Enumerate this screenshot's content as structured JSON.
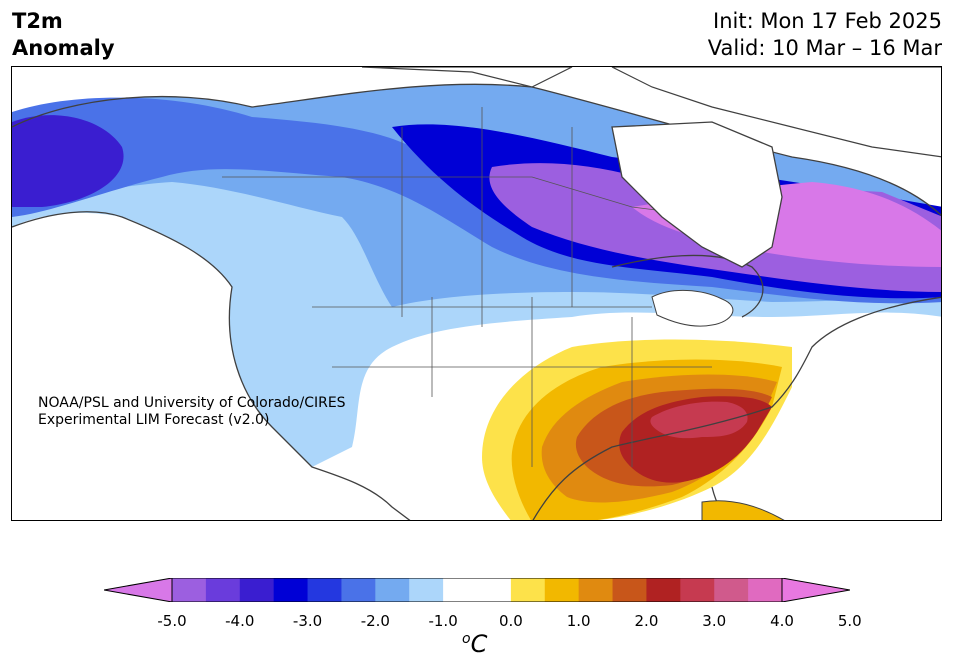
{
  "header": {
    "title_line1": "T2m",
    "title_line2": "Anomaly",
    "init": "Init: Mon 17 Feb 2025",
    "valid": "Valid: 10 Mar – 16 Mar"
  },
  "credit": {
    "line1": "NOAA/PSL and University of Colorado/CIRES",
    "line2": "Experimental LIM Forecast (v2.0)"
  },
  "colorbar": {
    "unit_symbol": "C",
    "unit_prefix": "o",
    "tick_labels": [
      "-5.0",
      "-4.0",
      "-3.0",
      "-2.0",
      "-1.0",
      "0.0",
      "1.0",
      "2.0",
      "3.0",
      "4.0",
      "5.0"
    ],
    "colors": [
      "#9c5fe0",
      "#6a3cdc",
      "#3a1ed0",
      "#0000d6",
      "#2438e0",
      "#4a72e8",
      "#74aaf0",
      "#acd6fa",
      "#ffffff",
      "#ffffff",
      "#fde24a",
      "#f2b800",
      "#e08a10",
      "#c8561a",
      "#b02222",
      "#c63a50",
      "#d05a8c",
      "#e06ac0"
    ],
    "under_color": "#d878e8",
    "over_color": "#e878e0"
  }
}
